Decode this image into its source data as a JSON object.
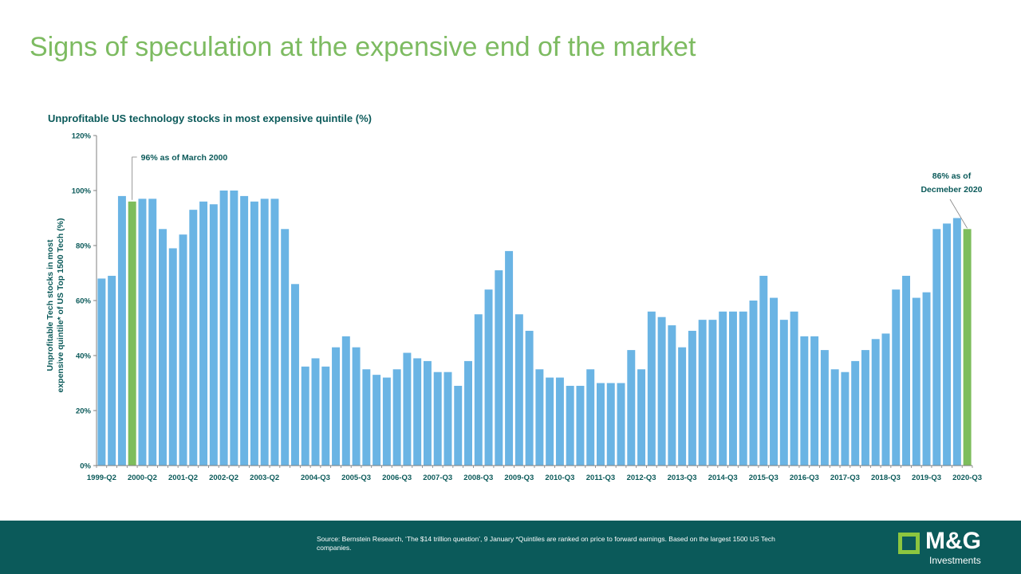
{
  "page": {
    "title": "Signs of speculation at the expensive end of the market"
  },
  "chart_data": {
    "type": "bar",
    "title": "Unprofitable US technology stocks in most expensive quintile (%)",
    "ylabel": "Unprofitable Tech stocks in most expensive quintile* of US Top 1500 Tech (%)",
    "ylabel_lines": [
      "Unprofitable Tech stocks in most",
      "expensive quintile* of US Top 1500 Tech (%)"
    ],
    "ylim": [
      0,
      120
    ],
    "yticks": [
      0,
      20,
      40,
      60,
      80,
      100,
      120
    ],
    "ytick_labels": [
      "0%",
      "20%",
      "40%",
      "60%",
      "80%",
      "100%",
      "120%"
    ],
    "x_labels": [
      {
        "index": 0,
        "label": "1999-Q2"
      },
      {
        "index": 4,
        "label": "2000-Q2"
      },
      {
        "index": 8,
        "label": "2001-Q2"
      },
      {
        "index": 12,
        "label": "2002-Q2"
      },
      {
        "index": 16,
        "label": "2003-Q2"
      },
      {
        "index": 21,
        "label": "2004-Q3"
      },
      {
        "index": 25,
        "label": "2005-Q3"
      },
      {
        "index": 29,
        "label": "2006-Q3"
      },
      {
        "index": 33,
        "label": "2007-Q3"
      },
      {
        "index": 37,
        "label": "2008-Q3"
      },
      {
        "index": 41,
        "label": "2009-Q3"
      },
      {
        "index": 45,
        "label": "2010-Q3"
      },
      {
        "index": 49,
        "label": "2011-Q3"
      },
      {
        "index": 53,
        "label": "2012-Q3"
      },
      {
        "index": 57,
        "label": "2013-Q3"
      },
      {
        "index": 61,
        "label": "2014-Q3"
      },
      {
        "index": 65,
        "label": "2015-Q3"
      },
      {
        "index": 69,
        "label": "2016-Q3"
      },
      {
        "index": 73,
        "label": "2017-Q3"
      },
      {
        "index": 77,
        "label": "2018-Q3"
      },
      {
        "index": 81,
        "label": "2019-Q3"
      },
      {
        "index": 85,
        "label": "2020-Q3"
      }
    ],
    "values": [
      68,
      69,
      98,
      96,
      97,
      97,
      86,
      79,
      84,
      93,
      96,
      95,
      100,
      100,
      98,
      96,
      97,
      97,
      86,
      66,
      36,
      39,
      36,
      43,
      47,
      43,
      35,
      33,
      32,
      35,
      41,
      39,
      38,
      34,
      34,
      29,
      38,
      55,
      64,
      71,
      78,
      55,
      49,
      35,
      32,
      32,
      29,
      29,
      35,
      30,
      30,
      30,
      42,
      35,
      56,
      54,
      51,
      43,
      49,
      53,
      53,
      56,
      56,
      56,
      60,
      69,
      61,
      53,
      56,
      47,
      47,
      42,
      35,
      34,
      38,
      42,
      46,
      48,
      64,
      69,
      61,
      63,
      86,
      88,
      90,
      86
    ],
    "highlighted_indices": [
      3,
      85
    ],
    "colors": {
      "bar": "#6ab4e4",
      "highlight": "#7dbd5c",
      "axis": "#7f7f7f",
      "text": "#0b5a5a"
    },
    "annotations": [
      {
        "text_lines": [
          "96% as of March 2000"
        ],
        "bar_index": 3
      },
      {
        "text_lines": [
          "86% as of",
          "Decmeber 2020"
        ],
        "bar_index": 85
      }
    ],
    "grid": false,
    "legend": "none"
  },
  "footer": {
    "source_text": "Source: Bernstein Research, ‘The $14 trillion question’, 9 January *Quintiles are ranked on price to forward earnings. Based on the largest 1500 US Tech companies.",
    "logo_name": "M&G",
    "logo_sub": "Investments"
  }
}
